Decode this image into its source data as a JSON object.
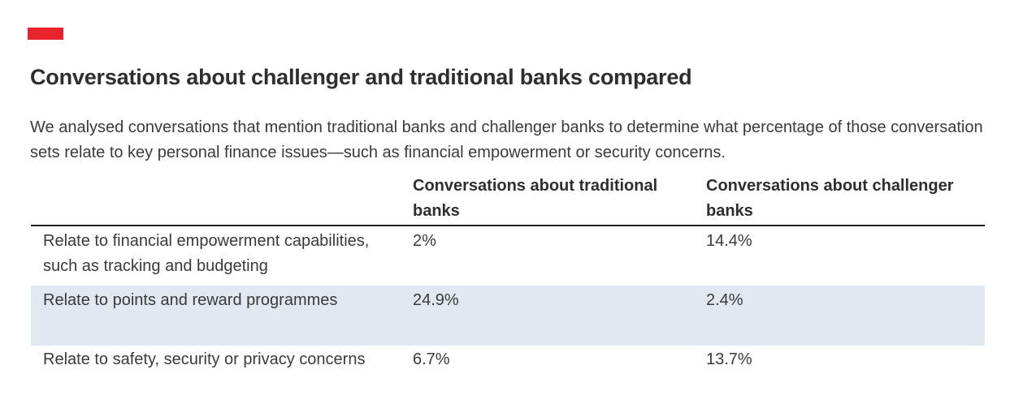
{
  "colors": {
    "accent": "#e8232a",
    "shaded_row": "#e1e8ef",
    "rule": "#222222"
  },
  "title": "Conversations about challenger and traditional banks compared",
  "description": "We analysed conversations that mention traditional banks and challenger banks to determine what percentage of those conversation sets relate to key personal finance issues—such as financial empowerment or security concerns.",
  "table": {
    "headers": [
      "",
      "Conversations about traditional banks",
      "Conversations about challenger banks"
    ],
    "rows": [
      {
        "label": "Relate to financial empowerment capabilities, such as tracking and budgeting",
        "traditional": "2%",
        "challenger": "14.4%"
      },
      {
        "label": "Relate to points and reward programmes",
        "traditional": "24.9%",
        "challenger": "2.4%"
      },
      {
        "label": "Relate to safety, security or privacy concerns",
        "traditional": "6.7%",
        "challenger": "13.7%"
      }
    ]
  }
}
